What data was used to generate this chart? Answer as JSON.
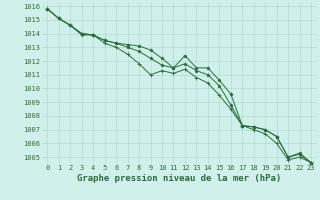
{
  "title": "Graphe pression niveau de la mer (hPa)",
  "x": [
    0,
    1,
    2,
    3,
    4,
    5,
    6,
    7,
    8,
    9,
    10,
    11,
    12,
    13,
    14,
    15,
    16,
    17,
    18,
    19,
    20,
    21,
    22,
    23
  ],
  "line1": [
    1015.8,
    1015.1,
    1014.6,
    1014.0,
    1013.9,
    1013.5,
    1013.3,
    1013.2,
    1013.1,
    1012.8,
    1012.2,
    1011.5,
    1012.4,
    1011.5,
    1011.5,
    1010.6,
    1009.6,
    1007.3,
    1007.2,
    1007.0,
    1006.5,
    1005.0,
    1005.3,
    1004.6
  ],
  "line2": [
    1015.8,
    1015.1,
    1014.6,
    1014.0,
    1013.9,
    1013.5,
    1013.3,
    1013.0,
    1012.7,
    1012.2,
    1011.7,
    1011.5,
    1011.8,
    1011.3,
    1011.0,
    1010.2,
    1008.8,
    1007.3,
    1007.2,
    1007.0,
    1006.5,
    1005.0,
    1005.2,
    1004.6
  ],
  "line3": [
    1015.8,
    1015.1,
    1014.6,
    1013.9,
    1013.9,
    1013.3,
    1013.0,
    1012.5,
    1011.8,
    1011.0,
    1011.3,
    1011.1,
    1011.4,
    1010.8,
    1010.4,
    1009.5,
    1008.5,
    1007.3,
    1007.0,
    1006.7,
    1006.0,
    1004.8,
    1005.0,
    1004.6
  ],
  "bg_color": "#d0f0ec",
  "grid_color": "#a8d8cc",
  "line_color": "#2d6b3a",
  "tick_label_color": "#2d6b3a",
  "title_color": "#2d6b3a",
  "ylabel_min": 1005,
  "ylabel_max": 1016,
  "xlabels": [
    "0",
    "1",
    "2",
    "3",
    "4",
    "5",
    "6",
    "7",
    "8",
    "9",
    "10",
    "11",
    "12",
    "13",
    "14",
    "15",
    "16",
    "17",
    "18",
    "19",
    "20",
    "21",
    "22",
    "23"
  ],
  "title_fontsize": 6.5,
  "tick_fontsize": 5.0,
  "lw": 0.7,
  "ms": 2.0
}
